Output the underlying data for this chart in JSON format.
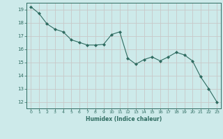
{
  "x": [
    0,
    1,
    2,
    3,
    4,
    5,
    6,
    7,
    8,
    9,
    10,
    11,
    12,
    13,
    14,
    15,
    16,
    17,
    18,
    19,
    20,
    21,
    22,
    23
  ],
  "y": [
    19.2,
    18.7,
    17.9,
    17.5,
    17.3,
    16.7,
    16.5,
    16.3,
    16.3,
    16.35,
    17.1,
    17.3,
    15.3,
    14.85,
    15.2,
    15.4,
    15.1,
    15.4,
    15.75,
    15.55,
    15.1,
    13.9,
    13.0,
    12.0
  ],
  "line_color": "#2e6b60",
  "marker_color": "#2e6b60",
  "bg_color": "#cdeaea",
  "grid_color": "#c8c8c8",
  "axis_color": "#2e6b60",
  "xlabel": "Humidex (Indice chaleur)",
  "ylim": [
    11.5,
    19.5
  ],
  "xlim": [
    -0.5,
    23.5
  ],
  "yticks": [
    12,
    13,
    14,
    15,
    16,
    17,
    18,
    19
  ],
  "xticks": [
    0,
    1,
    2,
    3,
    4,
    5,
    6,
    7,
    8,
    9,
    10,
    11,
    12,
    13,
    14,
    15,
    16,
    17,
    18,
    19,
    20,
    21,
    22,
    23
  ]
}
